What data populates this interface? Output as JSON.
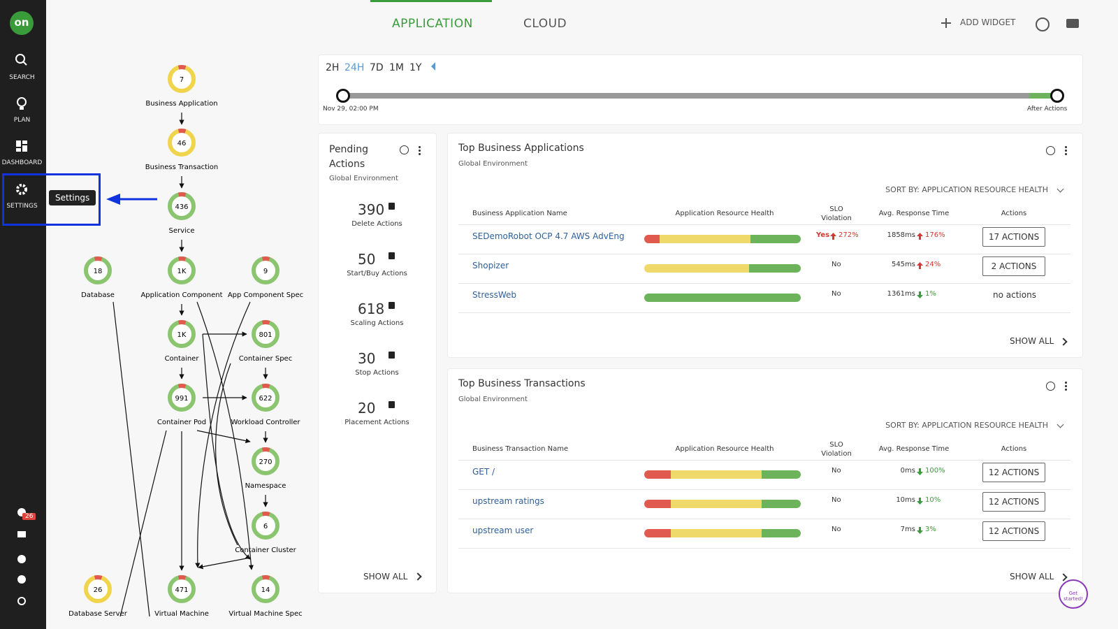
{
  "sidebar": {
    "logo": "on",
    "items": [
      "SEARCH",
      "PLAN",
      "DASHBOARD",
      "SETTINGS"
    ],
    "tooltip": "Settings",
    "badge": "26"
  },
  "tabs": [
    "APPLICATION",
    "CLOUD"
  ],
  "toolbar": {
    "add_widget": "ADD WIDGET"
  },
  "timeline": {
    "ranges": [
      "2H",
      "24H",
      "7D",
      "1M",
      "1Y"
    ],
    "selected_index": 1,
    "start": "Nov 29, 02:00 PM",
    "end": "After Actions"
  },
  "supply_chain": {
    "nodes": [
      {
        "label": "Business Application",
        "count": "7",
        "color": "#f0d44c"
      },
      {
        "label": "Business Transaction",
        "count": "46",
        "color": "#f0d44c"
      },
      {
        "label": "Service",
        "count": "436",
        "color": "#8cc56f"
      },
      {
        "label": "Database",
        "count": "18",
        "color": "#8cc56f"
      },
      {
        "label": "Application Component",
        "count": "1K",
        "color": "#8cc56f"
      },
      {
        "label": "App Component Spec",
        "count": "9",
        "color": "#8cc56f"
      },
      {
        "label": "Container",
        "count": "1K",
        "color": "#8cc56f"
      },
      {
        "label": "Container Spec",
        "count": "801",
        "color": "#8cc56f"
      },
      {
        "label": "Container Pod",
        "count": "991",
        "color": "#8cc56f"
      },
      {
        "label": "Workload Controller",
        "count": "622",
        "color": "#8cc56f"
      },
      {
        "label": "Namespace",
        "count": "270",
        "color": "#8cc56f"
      },
      {
        "label": "Container Cluster",
        "count": "6",
        "color": "#8cc56f"
      },
      {
        "label": "Database Server",
        "count": "26",
        "color": "#f0d44c"
      },
      {
        "label": "Virtual Machine",
        "count": "471",
        "color": "#8cc56f"
      },
      {
        "label": "Virtual Machine Spec",
        "count": "14",
        "color": "#8cc56f"
      }
    ]
  },
  "pending_actions": {
    "title": "Pending Actions",
    "subtitle": "Global Environment",
    "items": [
      {
        "count": 390,
        "label": "Delete Actions"
      },
      {
        "count": 50,
        "label": "Start/Buy Actions"
      },
      {
        "count": 618,
        "label": "Scaling Actions"
      },
      {
        "count": 30,
        "label": "Stop Actions"
      },
      {
        "count": 20,
        "label": "Placement Actions"
      }
    ],
    "show_all": "SHOW ALL"
  },
  "business_applications": {
    "title": "Top Business Applications",
    "subtitle": "Global Environment",
    "sort": "SORT BY: APPLICATION RESOURCE HEALTH",
    "columns": [
      "Business Application Name",
      "Application Resource Health",
      "SLO Violation",
      "Avg. Response Time",
      "Actions"
    ],
    "rows": [
      {
        "name": "SEDemoRobot OCP 4.7 AWS AdvEng",
        "health": [
          10,
          58,
          32
        ],
        "slo": "Yes",
        "slo_change": "272%",
        "response": "1858ms",
        "response_change": "176%",
        "trend": "up",
        "action": "17 ACTIONS",
        "has_button": true
      },
      {
        "name": "Shopizer",
        "health": [
          0,
          67,
          33
        ],
        "slo": "No",
        "response": "545ms",
        "response_change": "24%",
        "trend": "up",
        "action": "2 ACTIONS",
        "has_button": true
      },
      {
        "name": "StressWeb",
        "health": [
          0,
          0,
          100
        ],
        "slo": "No",
        "response": "1361ms",
        "response_change": "1%",
        "trend": "down",
        "action": "no actions",
        "has_button": false
      }
    ],
    "show_all": "SHOW ALL"
  },
  "business_transactions": {
    "title": "Top Business Transactions",
    "subtitle": "Global Environment",
    "sort": "SORT BY: APPLICATION RESOURCE HEALTH",
    "columns": [
      "Business Transaction Name",
      "Application Resource Health",
      "SLO Violation",
      "Avg. Response Time",
      "Actions"
    ],
    "rows": [
      {
        "name": "GET /",
        "health": [
          17,
          58,
          25
        ],
        "slo": "No",
        "response": "0ms",
        "response_change": "100%",
        "trend": "down",
        "action": "12 ACTIONS",
        "has_button": true
      },
      {
        "name": "upstream ratings",
        "health": [
          17,
          58,
          25
        ],
        "slo": "No",
        "response": "10ms",
        "response_change": "10%",
        "trend": "down",
        "action": "12 ACTIONS",
        "has_button": true
      },
      {
        "name": "upstream user",
        "health": [
          17,
          58,
          25
        ],
        "slo": "No",
        "response": "7ms",
        "response_change": "3%",
        "trend": "down",
        "action": "12 ACTIONS",
        "has_button": true
      }
    ],
    "show_all": "SHOW ALL"
  },
  "get_started": "Get started!"
}
